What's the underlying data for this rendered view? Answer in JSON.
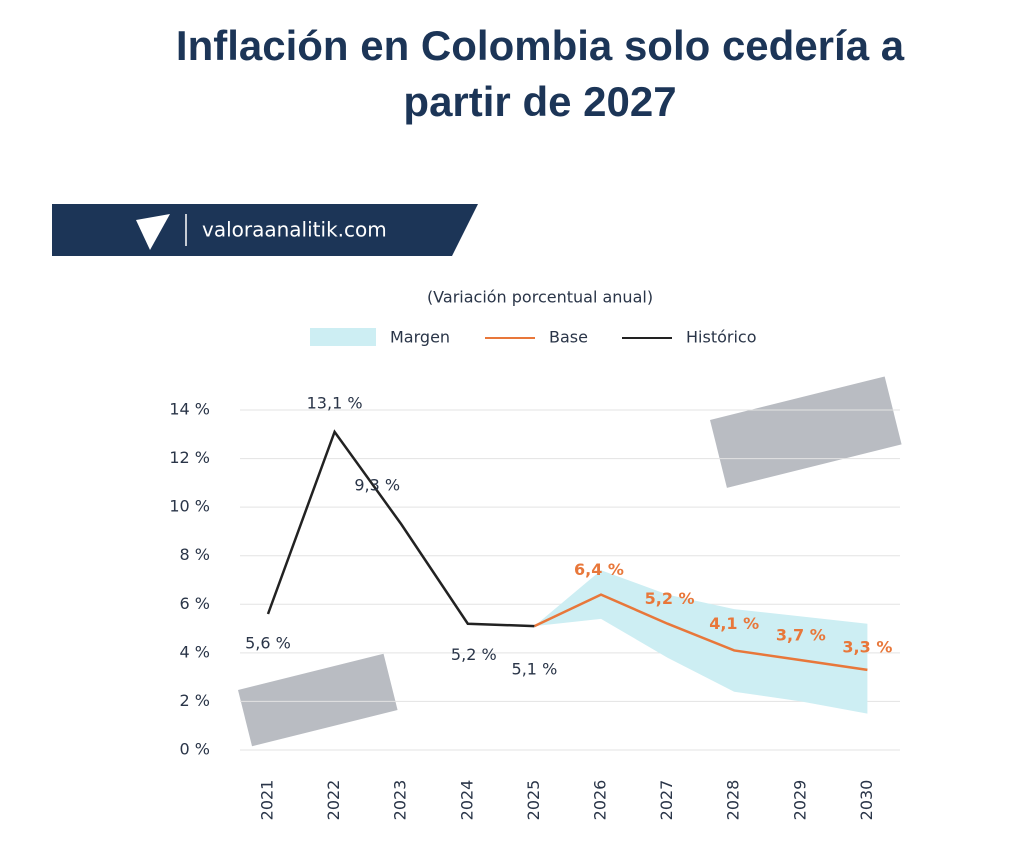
{
  "brand": "valoraanalitik.com",
  "chart_data": {
    "type": "line",
    "title": "Inflación en Colombia solo cedería a partir de 2027",
    "subtitle": "(Variación porcentual anual)",
    "categories": [
      "2021",
      "2022",
      "2023",
      "2024",
      "2025",
      "2026",
      "2027",
      "2028",
      "2029",
      "2030"
    ],
    "ylim": [
      0,
      14
    ],
    "yticks": [
      {
        "value": 0,
        "label": "0 %"
      },
      {
        "value": 2,
        "label": "2 %"
      },
      {
        "value": 4,
        "label": "4 %"
      },
      {
        "value": 6,
        "label": "6 %"
      },
      {
        "value": 8,
        "label": "8 %"
      },
      {
        "value": 10,
        "label": "10 %"
      },
      {
        "value": 12,
        "label": "12 %"
      },
      {
        "value": 14,
        "label": "14 %"
      }
    ],
    "grid": true,
    "series": [
      {
        "name": "Margen",
        "color": "#cdeef3",
        "type": "band",
        "upper": [
          null,
          null,
          null,
          null,
          5.1,
          7.4,
          6.4,
          5.8,
          5.5,
          5.2
        ],
        "lower": [
          null,
          null,
          null,
          null,
          5.1,
          5.4,
          3.8,
          2.4,
          2.0,
          1.5
        ]
      },
      {
        "name": "Base",
        "color": "#e8773a",
        "values": [
          null,
          null,
          null,
          null,
          5.1,
          6.4,
          5.2,
          4.1,
          3.7,
          3.3
        ],
        "value_labels": [
          null,
          null,
          null,
          null,
          null,
          "6,4 %",
          "5,2 %",
          "4,1 %",
          "3,7 %",
          "3,3 %"
        ]
      },
      {
        "name": "Histórico",
        "color": "#222222",
        "values": [
          5.6,
          13.1,
          9.3,
          5.2,
          5.1,
          null,
          null,
          null,
          null,
          null
        ],
        "value_labels": [
          "5,6 %",
          "13,1 %",
          "9,3 %",
          "5,2 %",
          "5,1 %",
          null,
          null,
          null,
          null,
          null
        ]
      }
    ]
  }
}
